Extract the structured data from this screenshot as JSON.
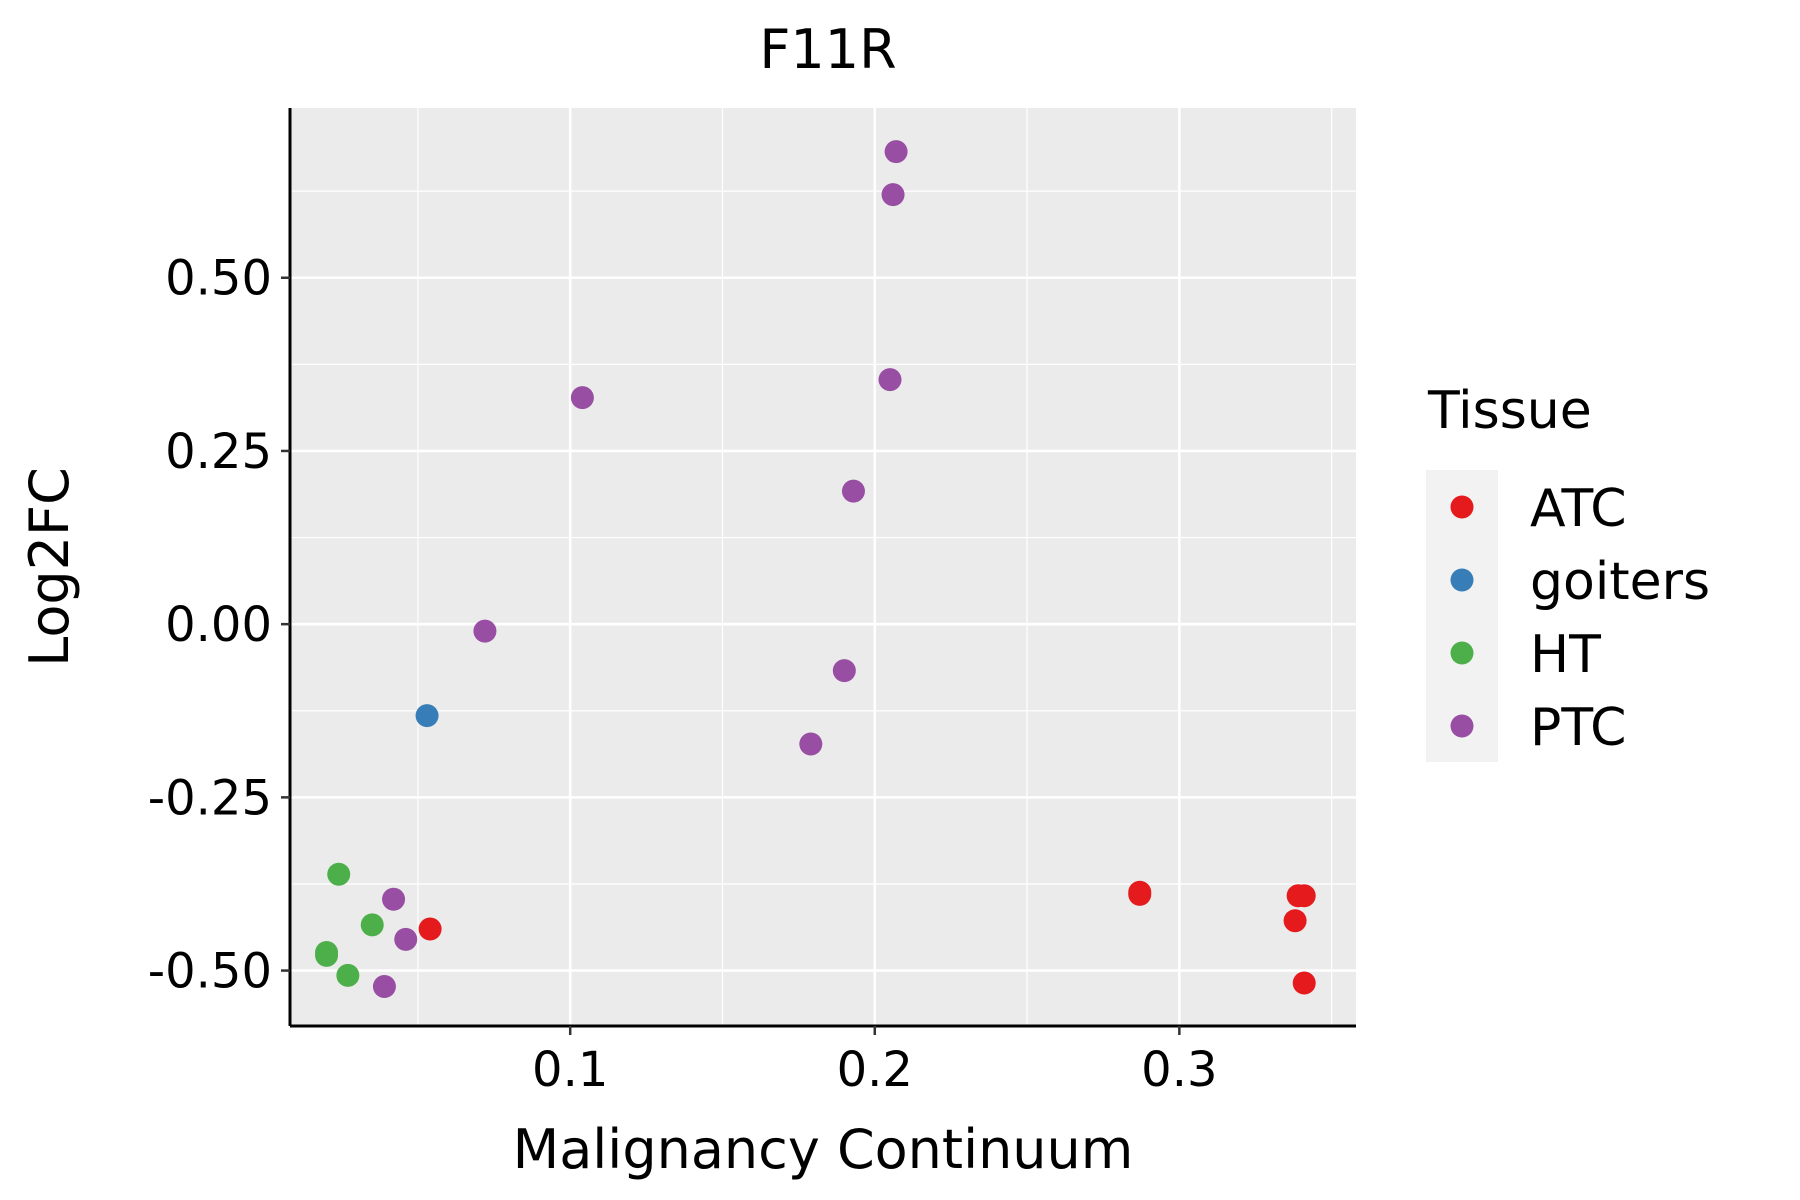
{
  "chart_data": {
    "type": "scatter",
    "title": "F11R",
    "xlabel": "Malignancy Continuum",
    "ylabel": "Log2FC",
    "xlim": [
      0.008,
      0.358
    ],
    "ylim": [
      -0.58,
      0.745
    ],
    "x_ticks": [
      0.1,
      0.2,
      0.3
    ],
    "x_tick_labels": [
      "0.1",
      "0.2",
      "0.3"
    ],
    "y_ticks": [
      -0.5,
      -0.25,
      0.0,
      0.25,
      0.5
    ],
    "y_tick_labels": [
      "-0.50",
      "-0.25",
      "0.00",
      "0.25",
      "0.50"
    ],
    "grid": true,
    "legend": {
      "title": "Tissue",
      "placement": "right",
      "entries": [
        {
          "name": "ATC",
          "color": "#E41A1C"
        },
        {
          "name": "goiters",
          "color": "#377EB8"
        },
        {
          "name": "HT",
          "color": "#4DAF4A"
        },
        {
          "name": "PTC",
          "color": "#984EA3"
        }
      ]
    },
    "series": [
      {
        "name": "ATC",
        "color": "#E41A1C",
        "points": [
          {
            "x": 0.054,
            "y": -0.44
          },
          {
            "x": 0.287,
            "y": -0.387
          },
          {
            "x": 0.287,
            "y": -0.39
          },
          {
            "x": 0.339,
            "y": -0.392
          },
          {
            "x": 0.341,
            "y": -0.392
          },
          {
            "x": 0.338,
            "y": -0.428
          },
          {
            "x": 0.341,
            "y": -0.518
          }
        ]
      },
      {
        "name": "goiters",
        "color": "#377EB8",
        "points": [
          {
            "x": 0.053,
            "y": -0.132
          }
        ]
      },
      {
        "name": "HT",
        "color": "#4DAF4A",
        "points": [
          {
            "x": 0.024,
            "y": -0.361
          },
          {
            "x": 0.035,
            "y": -0.434
          },
          {
            "x": 0.02,
            "y": -0.474
          },
          {
            "x": 0.02,
            "y": -0.478
          },
          {
            "x": 0.027,
            "y": -0.507
          }
        ]
      },
      {
        "name": "PTC",
        "color": "#984EA3",
        "points": [
          {
            "x": 0.207,
            "y": 0.682
          },
          {
            "x": 0.206,
            "y": 0.62
          },
          {
            "x": 0.205,
            "y": 0.353
          },
          {
            "x": 0.104,
            "y": 0.327
          },
          {
            "x": 0.193,
            "y": 0.192
          },
          {
            "x": 0.072,
            "y": -0.01
          },
          {
            "x": 0.19,
            "y": -0.067
          },
          {
            "x": 0.179,
            "y": -0.173
          },
          {
            "x": 0.042,
            "y": -0.397
          },
          {
            "x": 0.046,
            "y": -0.455
          },
          {
            "x": 0.039,
            "y": -0.523
          }
        ]
      }
    ]
  }
}
